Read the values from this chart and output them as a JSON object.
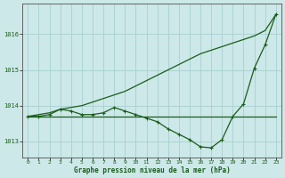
{
  "title": "Graphe pression niveau de la mer (hPa)",
  "bg_color": "#cce8e8",
  "grid_color": "#a8d0d0",
  "line_color": "#1a5c1a",
  "xlim": [
    -0.5,
    23.5
  ],
  "ylim": [
    1012.55,
    1016.85
  ],
  "xticks": [
    0,
    1,
    2,
    3,
    4,
    5,
    6,
    7,
    8,
    9,
    10,
    11,
    12,
    13,
    14,
    15,
    16,
    17,
    18,
    19,
    20,
    21,
    22,
    23
  ],
  "yticks": [
    1013,
    1014,
    1015,
    1016
  ],
  "line_flat_x": [
    0,
    1,
    2,
    3,
    4,
    5,
    6,
    7,
    8,
    9,
    10,
    11,
    12,
    13,
    14,
    15,
    16,
    17,
    18,
    19,
    20,
    21,
    22,
    23
  ],
  "line_flat_y": [
    1013.7,
    1013.7,
    1013.7,
    1013.7,
    1013.7,
    1013.7,
    1013.7,
    1013.7,
    1013.7,
    1013.7,
    1013.7,
    1013.7,
    1013.7,
    1013.7,
    1013.7,
    1013.7,
    1013.7,
    1013.7,
    1013.7,
    1013.7,
    1013.7,
    1013.7,
    1013.7,
    1013.7
  ],
  "line_rise_x": [
    0,
    1,
    2,
    3,
    4,
    5,
    6,
    7,
    8,
    9,
    10,
    11,
    12,
    13,
    14,
    15,
    16,
    17,
    18,
    19,
    20,
    21,
    22,
    23
  ],
  "line_rise_y": [
    1013.7,
    1013.75,
    1013.8,
    1013.9,
    1013.95,
    1014.0,
    1014.1,
    1014.2,
    1014.3,
    1014.4,
    1014.55,
    1014.7,
    1014.85,
    1015.0,
    1015.15,
    1015.3,
    1015.45,
    1015.55,
    1015.65,
    1015.75,
    1015.85,
    1015.95,
    1016.1,
    1016.55
  ],
  "line_measure_x": [
    0,
    1,
    2,
    3,
    4,
    5,
    6,
    7,
    8,
    9,
    10,
    11,
    12,
    13,
    14,
    15,
    16,
    17,
    18,
    19,
    20,
    21,
    22,
    23
  ],
  "line_measure_y": [
    1013.7,
    1013.7,
    1013.75,
    1013.9,
    1013.85,
    1013.75,
    1013.75,
    1013.8,
    1013.95,
    1013.85,
    1013.75,
    1013.65,
    1013.55,
    1013.35,
    1013.2,
    1013.05,
    1012.85,
    1012.82,
    1013.05,
    1013.7,
    1014.05,
    1015.05,
    1015.7,
    1016.55
  ]
}
